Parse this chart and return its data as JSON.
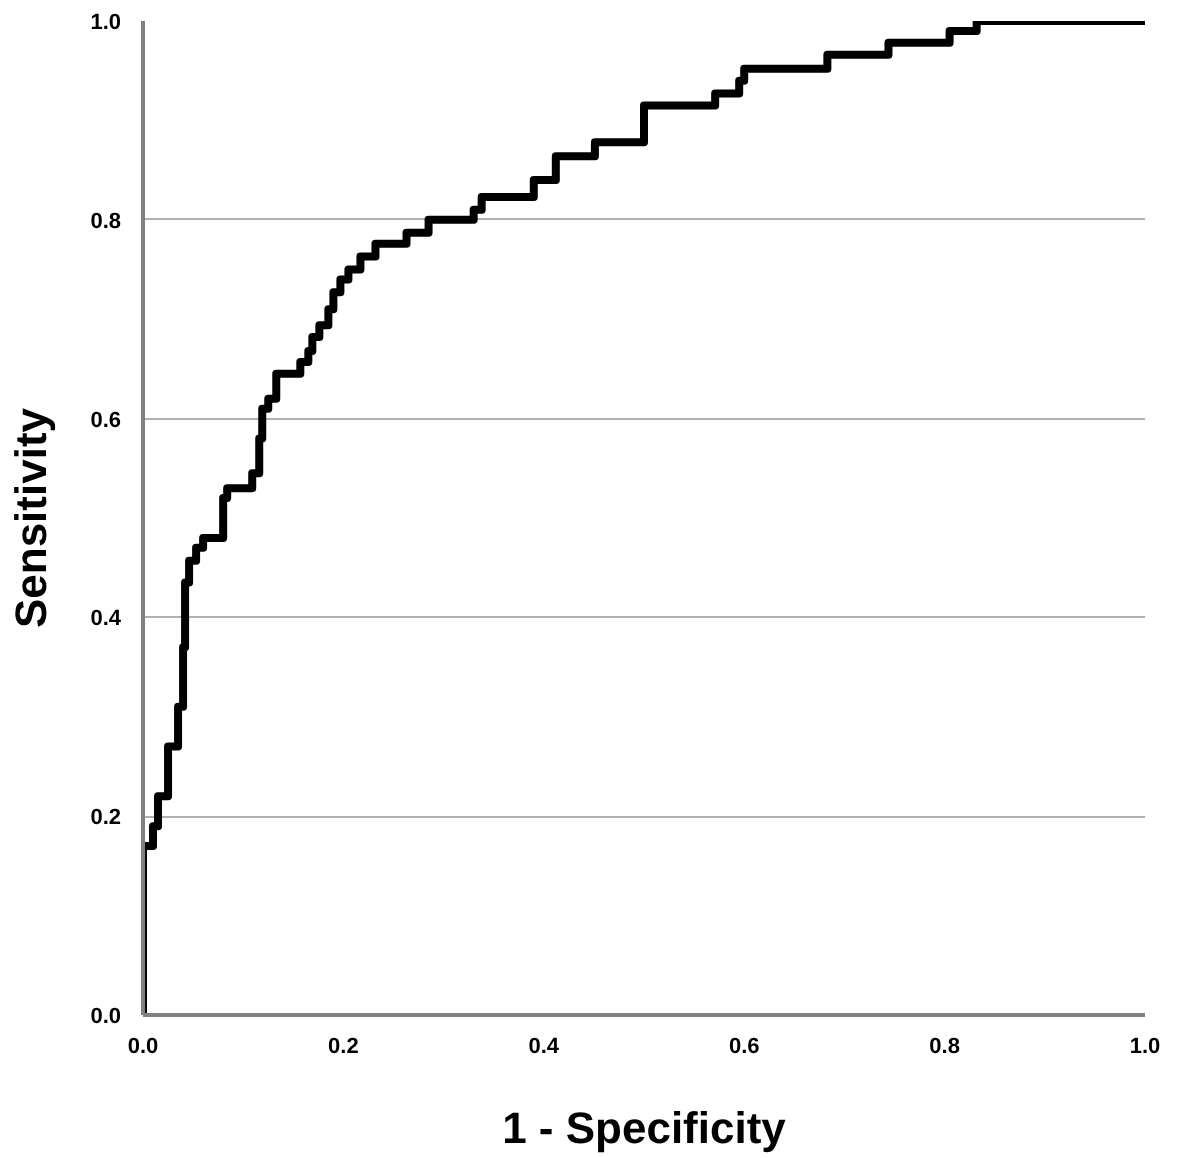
{
  "chart_data": {
    "type": "step",
    "xlabel": "1 - Specificity",
    "ylabel": "Sensitivity",
    "xlim": [
      0,
      1
    ],
    "ylim": [
      0,
      1
    ],
    "xticks": [
      {
        "value": 0,
        "label": "0.0"
      },
      {
        "value": 0.2,
        "label": "0.2"
      },
      {
        "value": 0.4,
        "label": "0.4"
      },
      {
        "value": 0.6,
        "label": "0.6"
      },
      {
        "value": 0.8,
        "label": "0.8"
      },
      {
        "value": 1,
        "label": "1.0"
      }
    ],
    "yticks": [
      {
        "value": 0,
        "label": "0.0"
      },
      {
        "value": 0.2,
        "label": "0.2"
      },
      {
        "value": 0.4,
        "label": "0.4"
      },
      {
        "value": 0.6,
        "label": "0.6"
      },
      {
        "value": 0.8,
        "label": "0.8"
      },
      {
        "value": 1,
        "label": "1.0"
      }
    ],
    "grid": "y",
    "series": [
      {
        "color": "#000000",
        "x": [
          0,
          0,
          0,
          0.01,
          0.015,
          0.025,
          0.035,
          0.04,
          0.042,
          0.046,
          0.053,
          0.06,
          0.08,
          0.084,
          0.109,
          0.116,
          0.119,
          0.125,
          0.133,
          0.157,
          0.165,
          0.169,
          0.176,
          0.185,
          0.19,
          0.197,
          0.205,
          0.217,
          0.232,
          0.263,
          0.285,
          0.33,
          0.338,
          0.39,
          0.412,
          0.451,
          0.5,
          0.571,
          0.595,
          0.6,
          0.683,
          0.744,
          0.805,
          0.832,
          1.0
        ],
        "values": [
          0,
          0.08,
          0.17,
          0.19,
          0.22,
          0.27,
          0.31,
          0.37,
          0.435,
          0.457,
          0.47,
          0.48,
          0.52,
          0.53,
          0.545,
          0.58,
          0.61,
          0.62,
          0.645,
          0.657,
          0.668,
          0.682,
          0.694,
          0.71,
          0.727,
          0.74,
          0.75,
          0.763,
          0.776,
          0.787,
          0.8,
          0.81,
          0.823,
          0.84,
          0.864,
          0.878,
          0.915,
          0.927,
          0.94,
          0.952,
          0.966,
          0.978,
          0.99,
          1.0,
          1.0
        ]
      }
    ]
  }
}
